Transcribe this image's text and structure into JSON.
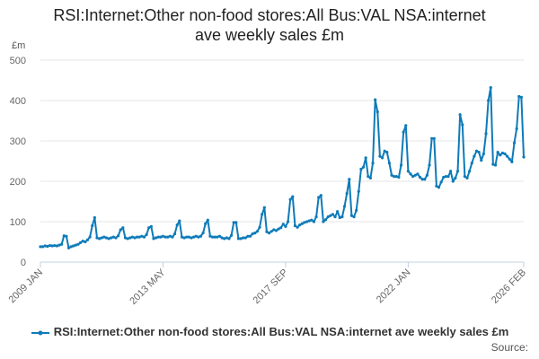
{
  "chart_data": {
    "type": "line",
    "title_line1": "RSI:Internet:Other non-food stores:All Bus:VAL NSA:internet",
    "title_line2": "ave weekly sales £m",
    "ylabel": "£m",
    "xlabel": "",
    "ylim": [
      0,
      500
    ],
    "yticks": [
      0,
      100,
      200,
      300,
      400,
      500
    ],
    "xrange": [
      "2009-01",
      "2026-02"
    ],
    "xticks": [
      {
        "label": "2009 JAN",
        "date": "2009-01"
      },
      {
        "label": "2013 MAY",
        "date": "2013-05"
      },
      {
        "label": "2017 SEP",
        "date": "2017-09"
      },
      {
        "label": "2022 JAN",
        "date": "2022-01"
      },
      {
        "label": "2026 FEB",
        "date": "2026-02"
      }
    ],
    "grid": true,
    "legend_position": "bottom",
    "series": [
      {
        "name": "RSI:Internet:Other non-food stores:All Bus:VAL NSA:internet ave weekly sales £m",
        "color": "#0e7bb8",
        "points": [
          [
            "2009-01",
            38
          ],
          [
            "2009-02",
            38
          ],
          [
            "2009-03",
            40
          ],
          [
            "2009-04",
            39
          ],
          [
            "2009-05",
            41
          ],
          [
            "2009-06",
            40
          ],
          [
            "2009-07",
            41
          ],
          [
            "2009-08",
            40
          ],
          [
            "2009-09",
            42
          ],
          [
            "2009-10",
            44
          ],
          [
            "2009-11",
            65
          ],
          [
            "2009-12",
            64
          ],
          [
            "2010-01",
            35
          ],
          [
            "2010-02",
            38
          ],
          [
            "2010-03",
            40
          ],
          [
            "2010-04",
            42
          ],
          [
            "2010-05",
            44
          ],
          [
            "2010-06",
            48
          ],
          [
            "2010-07",
            52
          ],
          [
            "2010-08",
            50
          ],
          [
            "2010-09",
            55
          ],
          [
            "2010-10",
            62
          ],
          [
            "2010-11",
            90
          ],
          [
            "2010-12",
            110
          ],
          [
            "2011-01",
            60
          ],
          [
            "2011-02",
            58
          ],
          [
            "2011-03",
            60
          ],
          [
            "2011-04",
            62
          ],
          [
            "2011-05",
            60
          ],
          [
            "2011-06",
            58
          ],
          [
            "2011-07",
            60
          ],
          [
            "2011-08",
            62
          ],
          [
            "2011-09",
            60
          ],
          [
            "2011-10",
            65
          ],
          [
            "2011-11",
            80
          ],
          [
            "2011-12",
            85
          ],
          [
            "2012-01",
            60
          ],
          [
            "2012-02",
            58
          ],
          [
            "2012-03",
            60
          ],
          [
            "2012-04",
            62
          ],
          [
            "2012-05",
            60
          ],
          [
            "2012-06",
            62
          ],
          [
            "2012-07",
            62
          ],
          [
            "2012-08",
            64
          ],
          [
            "2012-09",
            62
          ],
          [
            "2012-10",
            68
          ],
          [
            "2012-11",
            85
          ],
          [
            "2012-12",
            88
          ],
          [
            "2013-01",
            58
          ],
          [
            "2013-02",
            60
          ],
          [
            "2013-03",
            62
          ],
          [
            "2013-04",
            62
          ],
          [
            "2013-05",
            64
          ],
          [
            "2013-06",
            62
          ],
          [
            "2013-07",
            62
          ],
          [
            "2013-08",
            64
          ],
          [
            "2013-09",
            62
          ],
          [
            "2013-10",
            70
          ],
          [
            "2013-11",
            92
          ],
          [
            "2013-12",
            102
          ],
          [
            "2014-01",
            62
          ],
          [
            "2014-02",
            60
          ],
          [
            "2014-03",
            62
          ],
          [
            "2014-04",
            62
          ],
          [
            "2014-05",
            60
          ],
          [
            "2014-06",
            62
          ],
          [
            "2014-07",
            64
          ],
          [
            "2014-08",
            62
          ],
          [
            "2014-09",
            64
          ],
          [
            "2014-10",
            72
          ],
          [
            "2014-11",
            95
          ],
          [
            "2014-12",
            104
          ],
          [
            "2015-01",
            64
          ],
          [
            "2015-02",
            62
          ],
          [
            "2015-03",
            62
          ],
          [
            "2015-04",
            62
          ],
          [
            "2015-05",
            64
          ],
          [
            "2015-06",
            60
          ],
          [
            "2015-07",
            58
          ],
          [
            "2015-08",
            60
          ],
          [
            "2015-09",
            58
          ],
          [
            "2015-10",
            66
          ],
          [
            "2015-11",
            98
          ],
          [
            "2015-12",
            98
          ],
          [
            "2016-01",
            58
          ],
          [
            "2016-02",
            58
          ],
          [
            "2016-03",
            60
          ],
          [
            "2016-04",
            60
          ],
          [
            "2016-05",
            64
          ],
          [
            "2016-06",
            64
          ],
          [
            "2016-07",
            70
          ],
          [
            "2016-08",
            72
          ],
          [
            "2016-09",
            76
          ],
          [
            "2016-10",
            86
          ],
          [
            "2016-11",
            118
          ],
          [
            "2016-12",
            135
          ],
          [
            "2017-01",
            75
          ],
          [
            "2017-02",
            72
          ],
          [
            "2017-03",
            76
          ],
          [
            "2017-04",
            80
          ],
          [
            "2017-05",
            78
          ],
          [
            "2017-06",
            82
          ],
          [
            "2017-07",
            85
          ],
          [
            "2017-08",
            94
          ],
          [
            "2017-09",
            88
          ],
          [
            "2017-10",
            100
          ],
          [
            "2017-11",
            155
          ],
          [
            "2017-12",
            162
          ],
          [
            "2018-01",
            90
          ],
          [
            "2018-02",
            86
          ],
          [
            "2018-03",
            92
          ],
          [
            "2018-04",
            95
          ],
          [
            "2018-05",
            98
          ],
          [
            "2018-06",
            100
          ],
          [
            "2018-07",
            102
          ],
          [
            "2018-08",
            104
          ],
          [
            "2018-09",
            100
          ],
          [
            "2018-10",
            112
          ],
          [
            "2018-11",
            160
          ],
          [
            "2018-12",
            165
          ],
          [
            "2019-01",
            100
          ],
          [
            "2019-02",
            105
          ],
          [
            "2019-03",
            112
          ],
          [
            "2019-04",
            115
          ],
          [
            "2019-05",
            118
          ],
          [
            "2019-06",
            112
          ],
          [
            "2019-07",
            125
          ],
          [
            "2019-08",
            110
          ],
          [
            "2019-09",
            112
          ],
          [
            "2019-10",
            138
          ],
          [
            "2019-11",
            170
          ],
          [
            "2019-12",
            205
          ],
          [
            "2020-01",
            115
          ],
          [
            "2020-02",
            112
          ],
          [
            "2020-03",
            128
          ],
          [
            "2020-04",
            175
          ],
          [
            "2020-05",
            230
          ],
          [
            "2020-06",
            235
          ],
          [
            "2020-07",
            258
          ],
          [
            "2020-08",
            212
          ],
          [
            "2020-09",
            208
          ],
          [
            "2020-10",
            245
          ],
          [
            "2020-11",
            402
          ],
          [
            "2020-12",
            372
          ],
          [
            "2021-01",
            262
          ],
          [
            "2021-02",
            258
          ],
          [
            "2021-03",
            275
          ],
          [
            "2021-04",
            272
          ],
          [
            "2021-05",
            245
          ],
          [
            "2021-06",
            215
          ],
          [
            "2021-07",
            212
          ],
          [
            "2021-08",
            212
          ],
          [
            "2021-09",
            210
          ],
          [
            "2021-10",
            240
          ],
          [
            "2021-11",
            322
          ],
          [
            "2021-12",
            338
          ],
          [
            "2022-01",
            225
          ],
          [
            "2022-02",
            218
          ],
          [
            "2022-03",
            212
          ],
          [
            "2022-04",
            215
          ],
          [
            "2022-05",
            218
          ],
          [
            "2022-06",
            210
          ],
          [
            "2022-07",
            205
          ],
          [
            "2022-08",
            205
          ],
          [
            "2022-09",
            215
          ],
          [
            "2022-10",
            240
          ],
          [
            "2022-11",
            306
          ],
          [
            "2022-12",
            306
          ],
          [
            "2023-01",
            188
          ],
          [
            "2023-02",
            185
          ],
          [
            "2023-03",
            198
          ],
          [
            "2023-04",
            210
          ],
          [
            "2023-05",
            212
          ],
          [
            "2023-06",
            212
          ],
          [
            "2023-07",
            225
          ],
          [
            "2023-08",
            200
          ],
          [
            "2023-09",
            208
          ],
          [
            "2023-10",
            225
          ],
          [
            "2023-11",
            365
          ],
          [
            "2023-12",
            340
          ],
          [
            "2024-01",
            212
          ],
          [
            "2024-02",
            208
          ],
          [
            "2024-03",
            225
          ],
          [
            "2024-04",
            245
          ],
          [
            "2024-05",
            262
          ],
          [
            "2024-06",
            275
          ],
          [
            "2024-07",
            272
          ],
          [
            "2024-08",
            252
          ],
          [
            "2024-09",
            268
          ],
          [
            "2024-10",
            318
          ],
          [
            "2024-11",
            400
          ],
          [
            "2024-12",
            432
          ],
          [
            "2025-01",
            242
          ],
          [
            "2025-02",
            240
          ],
          [
            "2025-03",
            272
          ],
          [
            "2025-04",
            265
          ],
          [
            "2025-05",
            270
          ],
          [
            "2025-06",
            268
          ],
          [
            "2025-07",
            262
          ],
          [
            "2025-08",
            255
          ],
          [
            "2025-09",
            248
          ],
          [
            "2025-10",
            295
          ],
          [
            "2025-11",
            330
          ],
          [
            "2025-12",
            410
          ],
          [
            "2026-01",
            408
          ],
          [
            "2026-02",
            260
          ]
        ]
      }
    ]
  },
  "legend": {
    "label": "RSI:Internet:Other non-food stores:All Bus:VAL NSA:internet ave weekly sales £m"
  },
  "source": {
    "label": "Source:"
  },
  "colors": {
    "series": "#0e7bb8",
    "grid": "#e6e6e6",
    "axis": "#c0d0e0",
    "tick_label": "#666666"
  }
}
